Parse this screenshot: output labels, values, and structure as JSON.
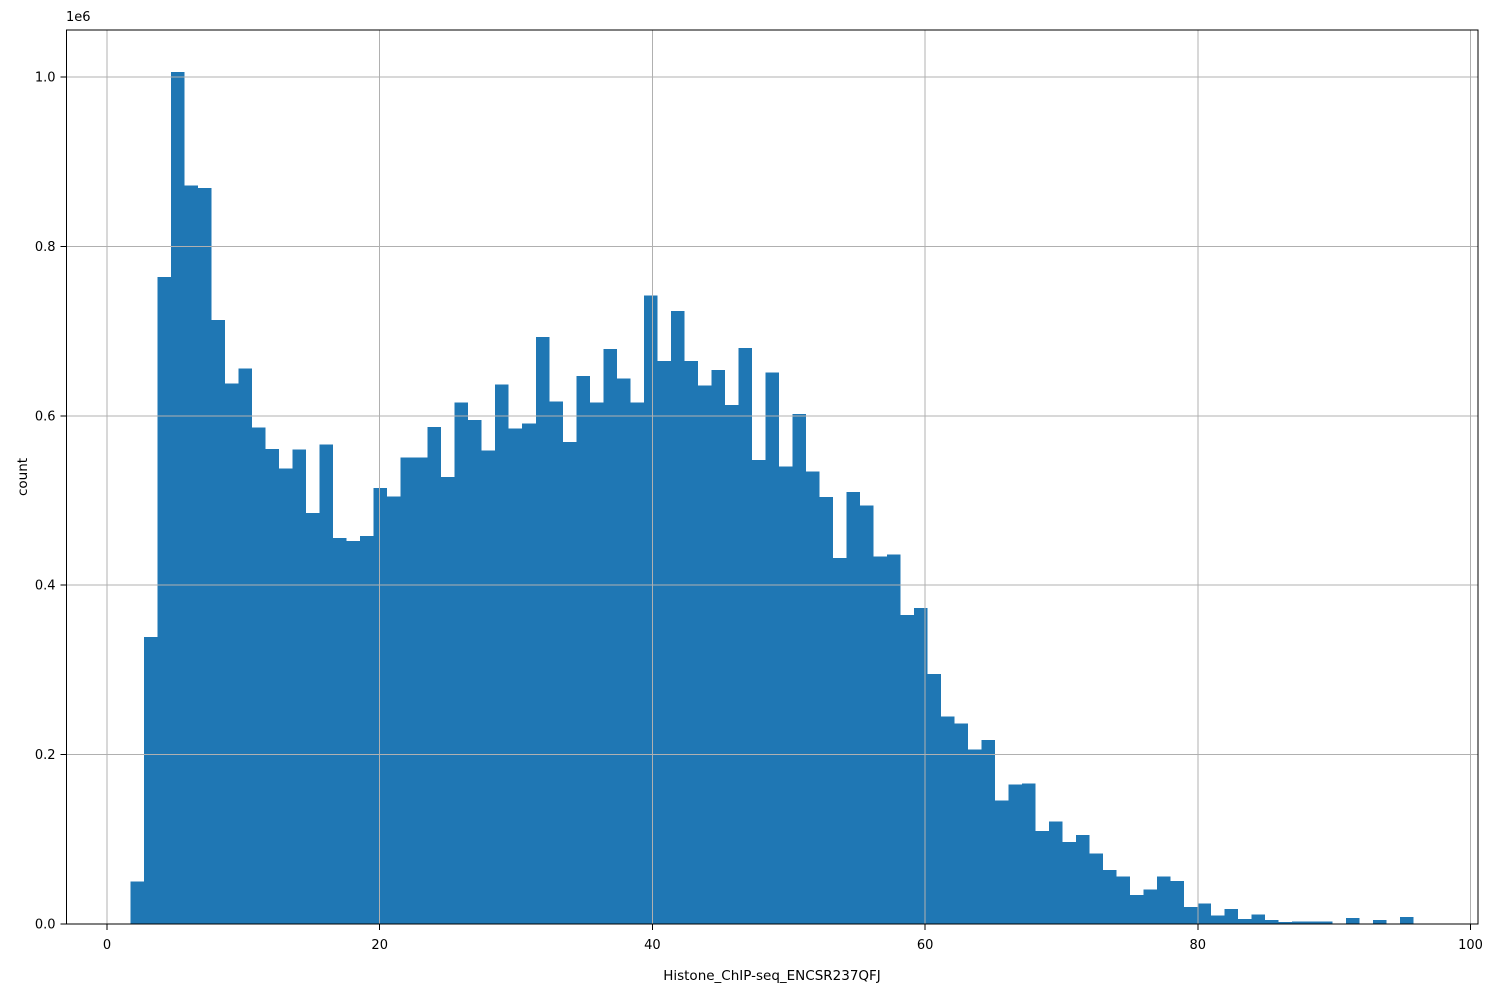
{
  "figure": {
    "background": "#ffffff"
  },
  "chart_data": {
    "type": "bar",
    "subtype": "histogram",
    "title": "",
    "xlabel": "Histone_ChIP-seq_ENCSR237QFJ",
    "ylabel": "count",
    "y_offset_text": "1e6",
    "bar_color": "#1f77b4",
    "grid_color": "#b0b0b0",
    "axis_color": "#000000",
    "grid_on": true,
    "legend_position": "none",
    "xlim": [
      -2.97,
      100.55
    ],
    "ylim": [
      0,
      1055500
    ],
    "xticks": [
      0,
      20,
      40,
      60,
      80,
      100
    ],
    "ytick_labels": [
      "0.0",
      "0.2",
      "0.4",
      "0.6",
      "0.8",
      "1.0"
    ],
    "ytick_values": [
      0,
      200000,
      400000,
      600000,
      800000,
      1000000
    ],
    "bin_start": 1.73,
    "bin_width": 0.9905,
    "values": [
      50000,
      339000,
      764000,
      1006000,
      872000,
      869000,
      713000,
      638000,
      656000,
      586000,
      561000,
      538000,
      560000,
      485000,
      566000,
      456000,
      452000,
      458000,
      515000,
      505000,
      551000,
      551000,
      587000,
      528000,
      616000,
      595000,
      559000,
      637000,
      585000,
      591000,
      693000,
      617000,
      569000,
      647000,
      616000,
      679000,
      644000,
      616000,
      742000,
      665000,
      724000,
      665000,
      636000,
      654000,
      613000,
      680000,
      548000,
      651000,
      540000,
      602000,
      534000,
      504000,
      432000,
      510000,
      494000,
      434000,
      436000,
      365000,
      373000,
      295000,
      245000,
      237000,
      206000,
      217000,
      146000,
      165000,
      166000,
      110000,
      121000,
      97000,
      105000,
      83000,
      64000,
      56000,
      34000,
      41000,
      56000,
      51000,
      20000,
      24000,
      10000,
      18000,
      6000,
      11000,
      5000,
      2500,
      3000,
      3000,
      3000,
      500,
      7000,
      800,
      5000,
      400,
      8000
    ]
  }
}
